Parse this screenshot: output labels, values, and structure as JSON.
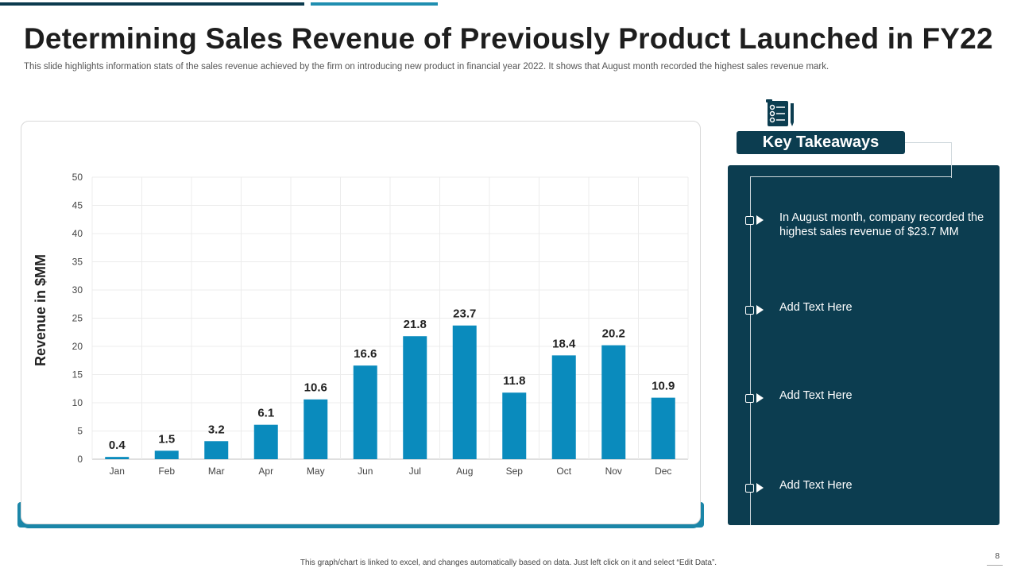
{
  "slide": {
    "title": "Determining Sales Revenue of Previously Product Launched in FY22",
    "subtitle": "This slide highlights information stats of the sales revenue achieved by the firm on introducing new product in financial year 2022. It shows that August month recorded the highest sales revenue mark.",
    "footer": "This graph/chart is linked to excel, and changes automatically based on data. Just left click on it and select “Edit Data”.",
    "page_number": "8"
  },
  "colors": {
    "bar": "#0a8bbd",
    "panel": "#0c3d50",
    "accent": "#1b86a8",
    "title": "#1e1e1e"
  },
  "takeaways": {
    "header": "Key Takeaways",
    "icon": "checklist-icon",
    "items": [
      {
        "text": "In August month, company recorded the highest sales revenue of $23.7 MM"
      },
      {
        "text": "Add Text Here"
      },
      {
        "text": "Add Text Here"
      },
      {
        "text": "Add Text Here"
      }
    ]
  },
  "chart_data": {
    "type": "bar",
    "title": "",
    "xlabel": "",
    "ylabel": "Revenue in $MM",
    "categories": [
      "Jan",
      "Feb",
      "Mar",
      "Apr",
      "May",
      "Jun",
      "Jul",
      "Aug",
      "Sep",
      "Oct",
      "Nov",
      "Dec"
    ],
    "values": [
      0.4,
      1.5,
      3.2,
      6.1,
      10.6,
      16.6,
      21.8,
      23.7,
      11.8,
      18.4,
      20.2,
      10.9
    ],
    "data_labels": [
      "0.4",
      "1.5",
      "3.2",
      "6.1",
      "10.6",
      "16.6",
      "21.8",
      "23.7",
      "11.8",
      "18.4",
      "20.2",
      "10.9"
    ],
    "ylim": [
      0,
      50
    ],
    "yticks": [
      0,
      5,
      10,
      15,
      20,
      25,
      30,
      35,
      40,
      45,
      50
    ],
    "grid": true
  }
}
